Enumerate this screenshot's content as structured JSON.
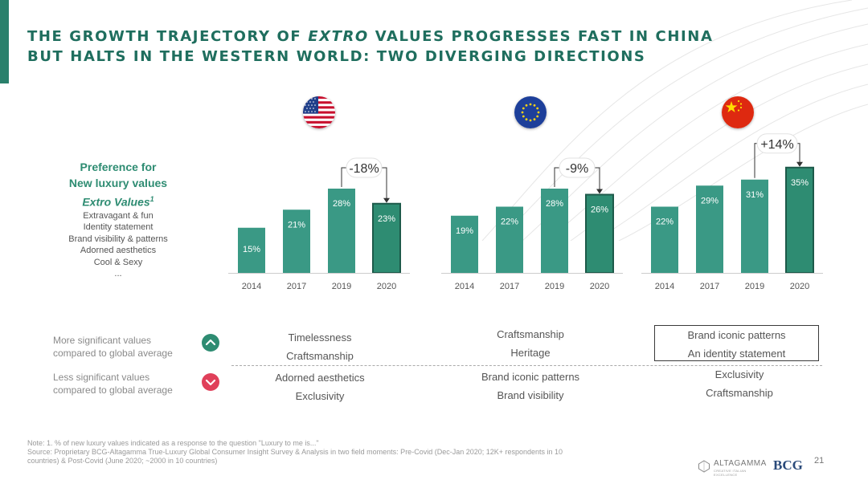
{
  "title": {
    "line1_a": "THE GROWTH TRAJECTORY OF ",
    "line1_em": "EXTRO",
    "line1_b": " VALUES PROGRESSES FAST IN CHINA",
    "line2": "BUT HALTS IN THE WESTERN WORLD: TWO DIVERGING DIRECTIONS"
  },
  "flags": {
    "usa": "usa-flag-icon",
    "eu": "eu-flag-icon",
    "china": "china-flag-icon"
  },
  "legend": {
    "line1": "Preference for",
    "line2": "New luxury values",
    "line3": "Extro Values",
    "line3_sup": "1",
    "items": [
      "Extravagant & fun",
      "Identity statement",
      "Brand visibility & patterns",
      "Adorned aesthetics",
      "Cool & Sexy",
      "..."
    ]
  },
  "colors": {
    "bar": "#3a9985",
    "bar_highlight": "#2e8c72",
    "bar_outline": "#1d5a4a",
    "title": "#1f6e5e",
    "up": "#2e8c72",
    "down": "#e0405a"
  },
  "chart_data": [
    {
      "type": "bar",
      "region": "USA",
      "categories": [
        "2014",
        "2017",
        "2019",
        "2020"
      ],
      "values": [
        15,
        21,
        28,
        23
      ],
      "value_labels": [
        "15%",
        "21%",
        "28%",
        "23%"
      ],
      "highlight_index": 3,
      "change_label": "-18%",
      "ylim": [
        0,
        40
      ]
    },
    {
      "type": "bar",
      "region": "Europe",
      "categories": [
        "2014",
        "2017",
        "2019",
        "2020"
      ],
      "values": [
        19,
        22,
        28,
        26
      ],
      "value_labels": [
        "19%",
        "22%",
        "28%",
        "26%"
      ],
      "highlight_index": 3,
      "change_label": "-9%",
      "ylim": [
        0,
        40
      ]
    },
    {
      "type": "bar",
      "region": "China",
      "categories": [
        "2014",
        "2017",
        "2019",
        "2020"
      ],
      "values": [
        22,
        29,
        31,
        35
      ],
      "value_labels": [
        "22%",
        "29%",
        "31%",
        "35%"
      ],
      "highlight_index": 3,
      "change_label": "+14%",
      "ylim": [
        0,
        40
      ]
    }
  ],
  "values": {
    "more_label_1": "More significant values",
    "more_label_2": "compared to global average",
    "less_label_1": "Less significant values",
    "less_label_2": "compared to global average",
    "usa_more": [
      "Timelessness",
      "Craftsmanship"
    ],
    "eu_more": [
      "Craftsmanship",
      "Heritage"
    ],
    "china_more": [
      "Brand iconic patterns",
      "An identity statement"
    ],
    "usa_less": [
      "Adorned aesthetics",
      "Exclusivity"
    ],
    "eu_less": [
      "Brand iconic patterns",
      "Brand visibility"
    ],
    "china_less": [
      "Exclusivity",
      "Craftsmanship"
    ]
  },
  "footnote": {
    "note": "Note: 1. % of new luxury values indicated as a response to the question \"Luxury to me is...\"",
    "source_1": "Source: Proprietary BCG-Altagamma True-Luxury Global Consumer Insight Survey & Analysis in two field moments: Pre-Covid (Dec-Jan 2020; 12K+ respondents in 10",
    "source_2": "countries) & Post-Covid (June 2020; ~2000 in 10 countries)"
  },
  "logos": {
    "altagamma": "ALTAGAMMA",
    "altagamma_sub": "CREATIVE ITALIAN EXCELLENCE",
    "bcg": "BCG"
  },
  "page_number": "21"
}
